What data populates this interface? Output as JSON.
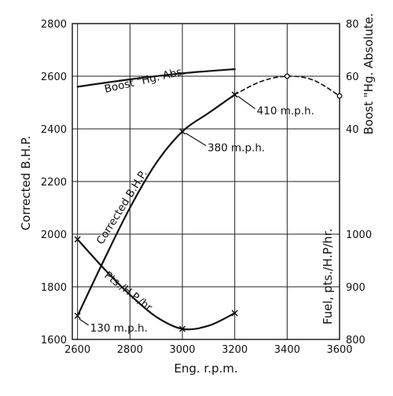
{
  "chart_data": {
    "type": "line",
    "xlabel": "Eng. r.p.m.",
    "ylabel_left": "Corrected B.H.P.",
    "ylabel_right_upper": "Boost \"Hg. Absolute.",
    "ylabel_right_lower": "Fuel, pts./H.P/hr.",
    "xlim": [
      2580,
      3600
    ],
    "x_ticks": [
      "2600",
      "2800",
      "3000",
      "3200",
      "3400",
      "3600"
    ],
    "y_left": {
      "lim": [
        1600,
        2800
      ],
      "ticks": [
        "1600",
        "1800",
        "2000",
        "2200",
        "2400",
        "2600",
        "2800"
      ]
    },
    "y_right_boost": {
      "lim": [
        40,
        80
      ],
      "ticks": [
        "40",
        "60",
        "80"
      ]
    },
    "y_right_fuel": {
      "lim": [
        800,
        1000
      ],
      "ticks": [
        "800",
        "900",
        "1000"
      ]
    },
    "series": [
      {
        "name": "Boost \"Hg. Abs.",
        "axis": "boost",
        "style": "solid",
        "x": [
          2600,
          2800,
          3000,
          3200
        ],
        "y": [
          56.0,
          58.8,
          61.1,
          62.7
        ]
      },
      {
        "name": "Corrected B.H.P.",
        "axis": "bhp",
        "style": "solid",
        "x": [
          2600,
          2700,
          2800,
          2900,
          3000,
          3100,
          3200
        ],
        "y": [
          1690,
          1900,
          2100,
          2270,
          2390,
          2460,
          2530
        ],
        "marked": [
          0,
          4,
          6
        ]
      },
      {
        "name": "Corrected B.H.P. (extrapolated)",
        "axis": "bhp",
        "style": "dashed",
        "x": [
          3200,
          3300,
          3400,
          3500,
          3600
        ],
        "y": [
          2530,
          2580,
          2600,
          2585,
          2525
        ],
        "marked": [
          2,
          4
        ]
      },
      {
        "name": "Pts./H.P./hr.",
        "axis": "fuel",
        "style": "solid",
        "x": [
          2600,
          2700,
          2800,
          2900,
          3000,
          3100,
          3200
        ],
        "y": [
          990,
          935,
          885,
          843,
          820,
          826,
          850
        ],
        "marked": [
          0,
          4,
          6
        ]
      }
    ],
    "annotations": [
      {
        "text": "Boost \"Hg. Abs.",
        "target": "boost-curve"
      },
      {
        "text": "Corrected B.H.P.",
        "target": "bhp-curve"
      },
      {
        "text": "Pts./H.P./hr.",
        "target": "fuel-curve"
      },
      {
        "text": "130 m.p.h.",
        "at_x": 2600,
        "at_bhp": 1690
      },
      {
        "text": "380 m.p.h.",
        "at_x": 3000,
        "at_bhp": 2390
      },
      {
        "text": "410 m.p.h.",
        "at_x": 3200,
        "at_bhp": 2530
      }
    ],
    "grid": true
  }
}
